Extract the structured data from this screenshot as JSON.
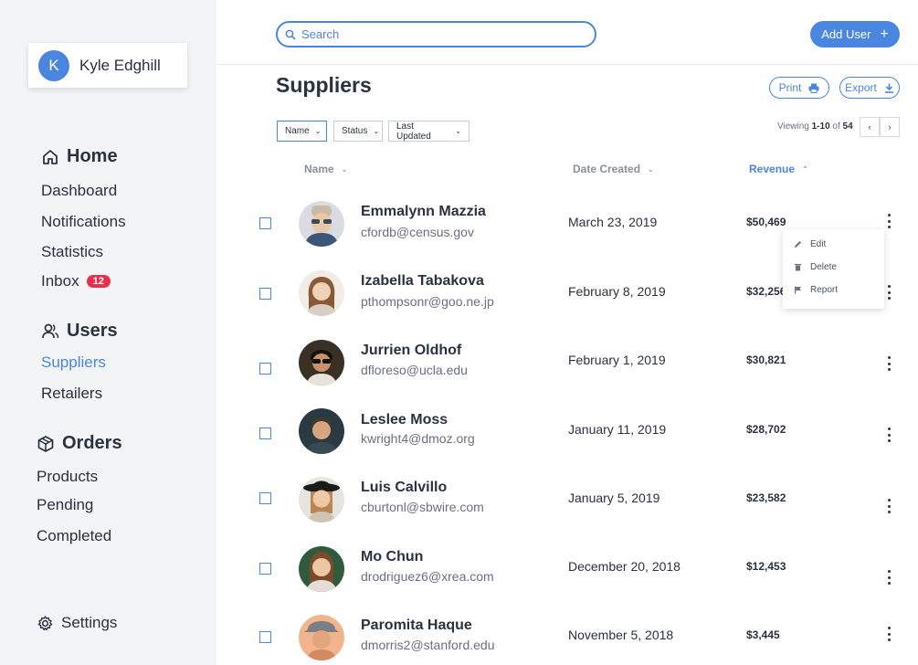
{
  "user": {
    "initial": "K",
    "name": "Kyle Edghill"
  },
  "sidebar": {
    "home": {
      "label": "Home",
      "items": [
        {
          "label": "Dashboard"
        },
        {
          "label": "Notifications"
        },
        {
          "label": "Statistics"
        },
        {
          "label": "Inbox",
          "badge": "12"
        }
      ]
    },
    "users": {
      "label": "Users",
      "items": [
        {
          "label": "Suppliers",
          "active": true
        },
        {
          "label": "Retailers"
        }
      ]
    },
    "orders": {
      "label": "Orders",
      "items": [
        {
          "label": "Products"
        },
        {
          "label": "Pending"
        },
        {
          "label": "Completed"
        }
      ]
    },
    "settings": {
      "label": "Settings"
    }
  },
  "search": {
    "placeholder": "Search",
    "value": ""
  },
  "actions": {
    "add_user": "Add User",
    "add_user_icon": "+",
    "print": "Print",
    "export": "Export"
  },
  "page": {
    "title": "Suppliers"
  },
  "filters": [
    {
      "label": "Name",
      "active": true
    },
    {
      "label": "Status"
    },
    {
      "label": "Last Updated"
    }
  ],
  "pagination": {
    "prefix": "Viewing",
    "range": "1-10",
    "of": "of",
    "total": "54",
    "prev": "‹",
    "next": "›"
  },
  "table": {
    "columns": {
      "name": "Name",
      "date": "Date Created",
      "revenue": "Revenue"
    },
    "sort_column": "Revenue",
    "rows": [
      {
        "name": "Emmalynn Mazzia",
        "email": "cfordb@census.gov",
        "date": "March 23, 2019",
        "revenue": "$50,469"
      },
      {
        "name": "Izabella Tabakova",
        "email": "pthompsonr@goo.ne.jp",
        "date": "February 8, 2019",
        "revenue": "$32,256"
      },
      {
        "name": "Jurrien Oldhof",
        "email": "dfloreso@ucla.edu",
        "date": "February 1, 2019",
        "revenue": "$30,821"
      },
      {
        "name": "Leslee Moss",
        "email": "kwright4@dmoz.org",
        "date": "January 11, 2019",
        "revenue": "$28,702"
      },
      {
        "name": "Luis Calvillo",
        "email": "cburtonl@sbwire.com",
        "date": "January 5, 2019",
        "revenue": "$23,582"
      },
      {
        "name": "Mo Chun",
        "email": "drodriguez6@xrea.com",
        "date": "December 20, 2018",
        "revenue": "$12,453"
      },
      {
        "name": "Paromita Haque",
        "email": "dmorris2@stanford.edu",
        "date": "November 5, 2018",
        "revenue": "$3,445"
      }
    ]
  },
  "context_menu": {
    "edit": "Edit",
    "delete": "Delete",
    "report": "Report"
  },
  "colors": {
    "accent": "#4a86e0",
    "badge": "#e8304e",
    "sidebar_bg": "#f3f4f6",
    "text": "#2a3140"
  }
}
